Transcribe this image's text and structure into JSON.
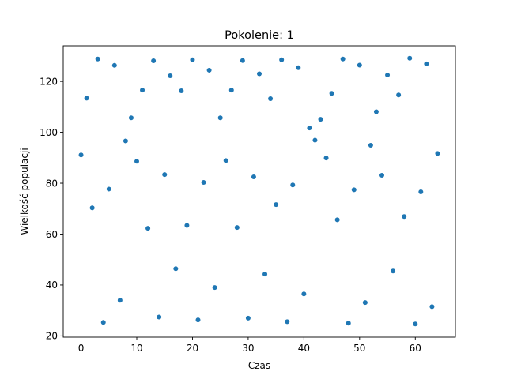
{
  "chart_data": {
    "type": "scatter",
    "title": "Pokolenie: 1",
    "xlabel": "Czas",
    "ylabel": "Wielkość populacji",
    "xlim": [
      -3.2,
      67.2
    ],
    "ylim": [
      19.5,
      134
    ],
    "xticks": [
      0,
      10,
      20,
      30,
      40,
      50,
      60
    ],
    "yticks": [
      20,
      40,
      60,
      80,
      100,
      120
    ],
    "grid": false,
    "color": "#1f77b4",
    "points": {
      "x": [
        0,
        1,
        2,
        3,
        4,
        5,
        6,
        7,
        8,
        9,
        10,
        11,
        12,
        13,
        14,
        15,
        16,
        17,
        18,
        19,
        20,
        21,
        22,
        23,
        24,
        25,
        26,
        27,
        28,
        29,
        30,
        31,
        32,
        33,
        34,
        35,
        36,
        37,
        38,
        39,
        40,
        41,
        42,
        43,
        44,
        45,
        46,
        47,
        48,
        49,
        50,
        51,
        52,
        53,
        54,
        55,
        56,
        57,
        58,
        59,
        60,
        61,
        62,
        63,
        64
      ],
      "y": [
        91.1,
        113.4,
        70.3,
        128.8,
        25.3,
        77.7,
        126.3,
        34.0,
        96.6,
        105.7,
        88.6,
        116.6,
        62.3,
        128.1,
        27.4,
        83.4,
        122.2,
        46.4,
        116.3,
        63.4,
        128.5,
        26.3,
        80.3,
        124.4,
        39.0,
        105.7,
        88.9,
        116.6,
        62.6,
        128.2,
        27.0,
        82.5,
        123.0,
        44.3,
        113.2,
        71.6,
        128.5,
        25.6,
        79.3,
        125.4,
        36.5,
        101.7,
        96.9,
        105.1,
        89.9,
        115.3,
        65.6,
        128.8,
        25.0,
        77.4,
        126.4,
        33.1,
        94.9,
        108.1,
        83.1,
        122.5,
        45.5,
        114.7,
        66.9,
        129.1,
        24.7,
        76.6,
        126.9,
        31.5,
        91.7
      ]
    }
  }
}
